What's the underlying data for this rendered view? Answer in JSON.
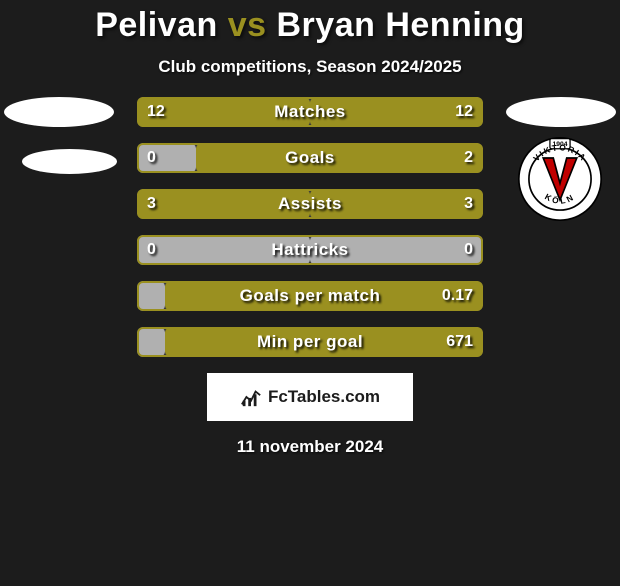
{
  "title": {
    "player1": "Pelivan",
    "vs": "vs",
    "player2": "Bryan Henning",
    "player1_color": "#ffffff",
    "vs_color": "#9a9020",
    "player2_color": "#ffffff"
  },
  "subtitle": "Club competitions, Season 2024/2025",
  "left_team_color": "#ffffff",
  "right_team_color": "#ffffff",
  "bars": [
    {
      "label": "Matches",
      "left": "12",
      "right": "12",
      "left_pct": 50,
      "right_pct": 50,
      "left_color": "#9a9020",
      "right_color": "#9a9020"
    },
    {
      "label": "Goals",
      "left": "0",
      "right": "2",
      "left_pct": 17,
      "right_pct": 83,
      "left_color": "#b0b0b0",
      "right_color": "#9a9020"
    },
    {
      "label": "Assists",
      "left": "3",
      "right": "3",
      "left_pct": 50,
      "right_pct": 50,
      "left_color": "#9a9020",
      "right_color": "#9a9020"
    },
    {
      "label": "Hattricks",
      "left": "0",
      "right": "0",
      "left_pct": 50,
      "right_pct": 50,
      "left_color": "#b0b0b0",
      "right_color": "#b0b0b0"
    },
    {
      "label": "Goals per match",
      "left": "",
      "right": "0.17",
      "left_pct": 8,
      "right_pct": 92,
      "left_color": "#b0b0b0",
      "right_color": "#9a9020"
    },
    {
      "label": "Min per goal",
      "left": "",
      "right": "671",
      "left_pct": 8,
      "right_pct": 92,
      "left_color": "#b0b0b0",
      "right_color": "#9a9020"
    }
  ],
  "bar_border_color": "#9a9020",
  "bar_bg_color": "#3a3a3a",
  "footer": {
    "text": "FcTables.com",
    "bg": "#ffffff",
    "fg": "#1c1c1c"
  },
  "date": "11 november 2024",
  "club_logo": {
    "year": "1904",
    "name_top": "VIKTORIA",
    "name_bottom": "KÖLN",
    "ring_bg": "#ffffff",
    "ring_text": "#000000",
    "inner_bg": "#ffffff",
    "v_color": "#c00000",
    "v_outline": "#000000"
  },
  "background_color": "#1c1c1c"
}
